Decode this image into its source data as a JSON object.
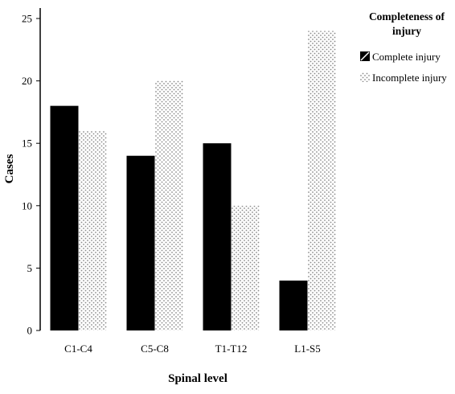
{
  "chart_data": {
    "type": "bar",
    "xlabel": "Spinal level",
    "ylabel": "Cases",
    "categories": [
      "C1-C4",
      "C5-C8",
      "T1-T12",
      "L1-S5"
    ],
    "ylim": [
      0,
      25
    ],
    "yticks": [
      "0",
      "5",
      "10",
      "15",
      "20",
      "25"
    ],
    "grid": false,
    "legend": {
      "title": "Completeness of injury",
      "title_lines": [
        "Completeness of",
        "injury"
      ],
      "placement": "top-right",
      "entries": [
        "Complete injury",
        "Incomplete injury"
      ]
    },
    "series": [
      {
        "name": "Complete injury",
        "values": [
          18,
          14,
          15,
          4
        ],
        "color": "#000000",
        "pattern": "solid"
      },
      {
        "name": "Incomplete injury",
        "values": [
          16,
          20,
          10,
          24
        ],
        "color": "#9a9a9a",
        "pattern": "dotted"
      }
    ]
  }
}
